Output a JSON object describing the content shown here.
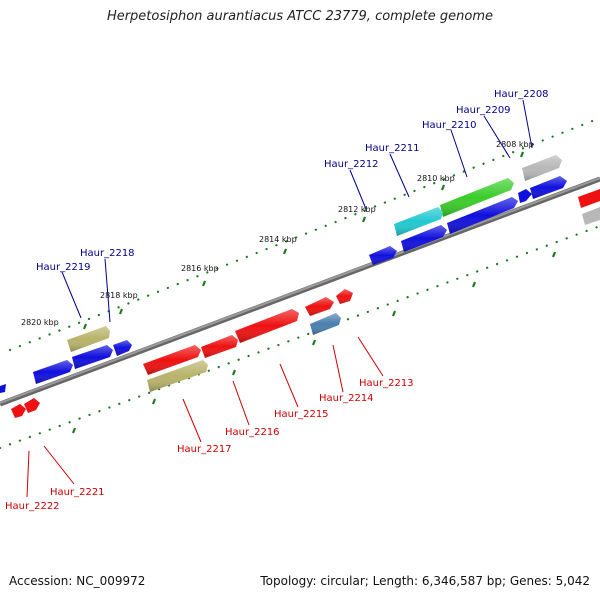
{
  "title": "Herpetosiphon aurantiacus ATCC 23779, complete genome",
  "footer": {
    "accession": "Accession: NC_009972",
    "summary": "Topology: circular; Length: 6,346,587 bp; Genes: 5,042"
  },
  "colors": {
    "forward_label": "#00008b",
    "reverse_label": "#cc0000",
    "backbone": "#777777",
    "ticks": "#1e7a1e",
    "blue": "#1010dd",
    "red": "#ee1111",
    "olive": "#b8b36a",
    "cyan": "#22c8d0",
    "green": "#3acc2a",
    "gray": "#b8b8b8",
    "steel": "#4a7fae"
  },
  "scale_labels": [
    "2808 kbp",
    "2810 kbp",
    "2812 kbp",
    "2814 kbp",
    "2816 kbp",
    "2818 kbp",
    "2820 kbp"
  ],
  "forward_labels": [
    "Haur_2208",
    "Haur_2209",
    "Haur_2210",
    "Haur_2211",
    "Haur_2212",
    "Haur_2218",
    "Haur_2219"
  ],
  "reverse_labels": [
    "Haur_2213",
    "Haur_2214",
    "Haur_2215",
    "Haur_2216",
    "Haur_2217",
    "Haur_2221",
    "Haur_2222"
  ]
}
